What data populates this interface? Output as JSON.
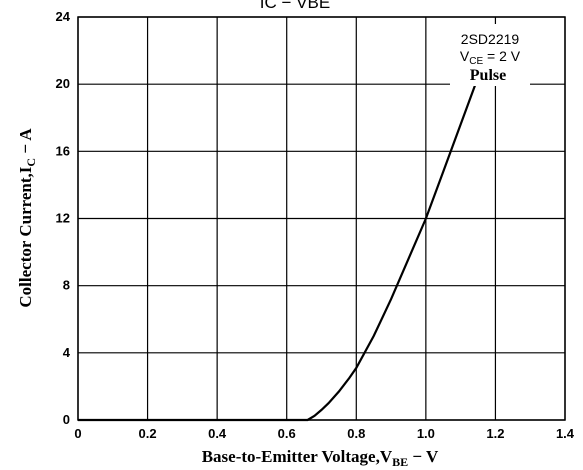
{
  "chart_data": {
    "type": "line",
    "title": "IC − VBE",
    "xlabel": "Base-to-Emitter Voltage,V",
    "xlabel_sub": "BE",
    "xlabel_tail": " − V",
    "ylabel": "Collector Current,I",
    "ylabel_sub": "C",
    "ylabel_tail": " − A",
    "xlim": [
      0,
      1.4
    ],
    "ylim": [
      0,
      24
    ],
    "xticks": [
      "0",
      "0.2",
      "0.4",
      "0.6",
      "0.8",
      "1.0",
      "1.2",
      "1.4"
    ],
    "yticks": [
      "0",
      "4",
      "8",
      "12",
      "16",
      "20",
      "24"
    ],
    "grid": true,
    "annotations": {
      "part": "2SD2219",
      "condition_label": "V",
      "condition_sub": "CE",
      "condition_value": " = 2 V",
      "mode": "Pulse"
    },
    "series": [
      {
        "x": [
          0.0,
          0.66,
          0.68,
          0.7,
          0.72,
          0.75,
          0.78,
          0.8,
          0.85,
          0.9,
          0.95,
          1.0,
          1.05,
          1.1,
          1.155
        ],
        "y": [
          0.0,
          0.0,
          0.25,
          0.6,
          1.0,
          1.7,
          2.5,
          3.1,
          5.0,
          7.2,
          9.6,
          12.0,
          14.8,
          17.6,
          20.7
        ]
      }
    ]
  }
}
